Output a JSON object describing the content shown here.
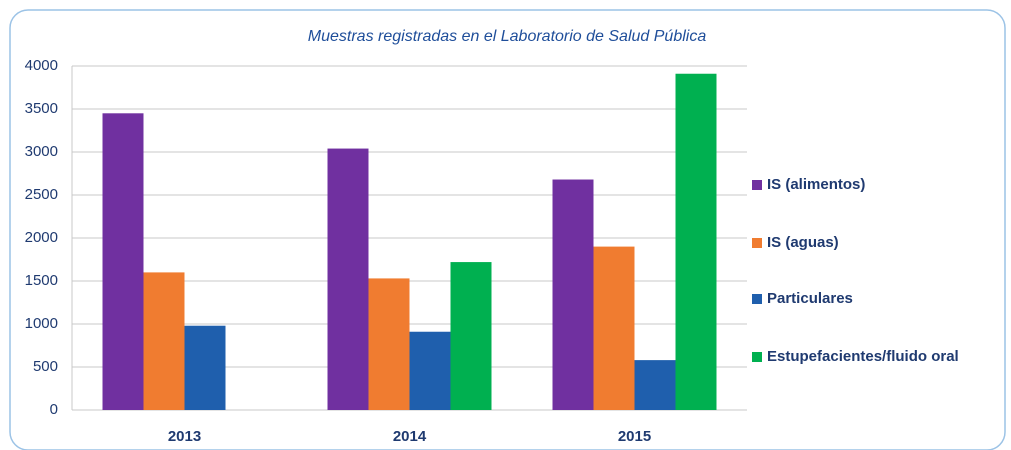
{
  "chart_data": {
    "type": "bar",
    "title": "Muestras registradas en el Laboratorio de Salud Pública",
    "categories": [
      "2013",
      "2014",
      "2015"
    ],
    "series": [
      {
        "name": "IS (alimentos)",
        "color": "#7030a0",
        "values": [
          3450,
          3040,
          2680
        ]
      },
      {
        "name": "IS (aguas)",
        "color": "#f07c30",
        "values": [
          1600,
          1530,
          1900
        ]
      },
      {
        "name": "Particulares",
        "color": "#1f5fad",
        "values": [
          980,
          910,
          580
        ]
      },
      {
        "name": "Estupefacientes/fluido oral",
        "color": "#00b050",
        "values": [
          null,
          1720,
          3910
        ]
      }
    ],
    "ylim": [
      0,
      4000
    ],
    "yticks": [
      0,
      500,
      1000,
      1500,
      2000,
      2500,
      3000,
      3500,
      4000
    ],
    "grid": true,
    "legend": "right"
  }
}
